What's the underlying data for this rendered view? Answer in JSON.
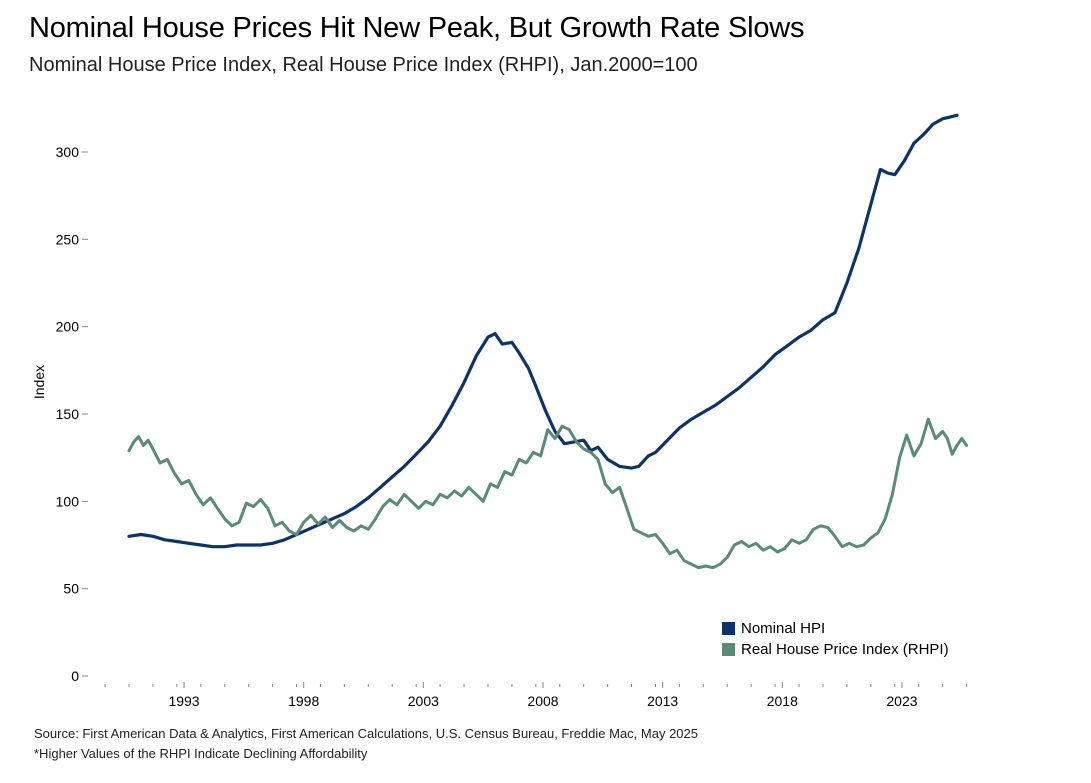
{
  "title": "Nominal House Prices Hit New Peak, But Growth Rate Slows",
  "subtitle": "Nominal House Price Index, Real House Price Index (RHPI), Jan.2000=100",
  "source": "Source: First American Data & Analytics, First American Calculations, U.S. Census Bureau, Freddie Mac, May 2025",
  "footnote": "*Higher Values of the RHPI Indicate Declining Affordability",
  "colors": {
    "nominal": "#0c3468",
    "real": "#5a8a78",
    "axis": "#888888"
  },
  "chart_data": {
    "type": "line",
    "ylabel": "Index",
    "xlabel": "",
    "ylim": [
      0,
      325
    ],
    "xlim": [
      1990.0,
      2025.8
    ],
    "yticks": [
      0,
      50,
      100,
      150,
      200,
      250,
      300
    ],
    "xticks": [
      1993,
      1998,
      2003,
      2008,
      2013,
      2018,
      2023
    ],
    "legend": [
      "Nominal HPI",
      "Real House Price Index (RHPI)"
    ],
    "series": [
      {
        "name": "Nominal HPI",
        "points": [
          [
            1991.0,
            80
          ],
          [
            1991.5,
            81
          ],
          [
            1992.0,
            80
          ],
          [
            1992.5,
            78
          ],
          [
            1993.0,
            77
          ],
          [
            1993.5,
            76
          ],
          [
            1994.0,
            75
          ],
          [
            1994.5,
            74
          ],
          [
            1995.0,
            74
          ],
          [
            1995.5,
            75
          ],
          [
            1996.0,
            75
          ],
          [
            1996.5,
            75
          ],
          [
            1997.0,
            76
          ],
          [
            1997.5,
            78
          ],
          [
            1998.0,
            81
          ],
          [
            1998.5,
            84
          ],
          [
            1999.0,
            87
          ],
          [
            1999.5,
            90
          ],
          [
            2000.0,
            93
          ],
          [
            2000.5,
            97
          ],
          [
            2001.0,
            102
          ],
          [
            2001.5,
            108
          ],
          [
            2002.0,
            114
          ],
          [
            2002.5,
            120
          ],
          [
            2003.0,
            127
          ],
          [
            2003.5,
            134
          ],
          [
            2004.0,
            143
          ],
          [
            2004.5,
            155
          ],
          [
            2005.0,
            168
          ],
          [
            2005.5,
            183
          ],
          [
            2006.0,
            194
          ],
          [
            2006.3,
            196
          ],
          [
            2006.6,
            190
          ],
          [
            2007.0,
            191
          ],
          [
            2007.3,
            185
          ],
          [
            2007.7,
            176
          ],
          [
            2008.0,
            166
          ],
          [
            2008.4,
            152
          ],
          [
            2008.8,
            140
          ],
          [
            2009.2,
            133
          ],
          [
            2009.6,
            134
          ],
          [
            2010.0,
            135
          ],
          [
            2010.3,
            129
          ],
          [
            2010.6,
            131
          ],
          [
            2011.0,
            124
          ],
          [
            2011.5,
            120
          ],
          [
            2012.0,
            119
          ],
          [
            2012.3,
            120
          ],
          [
            2012.7,
            126
          ],
          [
            2013.0,
            128
          ],
          [
            2013.5,
            135
          ],
          [
            2014.0,
            142
          ],
          [
            2014.5,
            147
          ],
          [
            2015.0,
            151
          ],
          [
            2015.5,
            155
          ],
          [
            2016.0,
            160
          ],
          [
            2016.5,
            165
          ],
          [
            2017.0,
            171
          ],
          [
            2017.5,
            177
          ],
          [
            2018.0,
            184
          ],
          [
            2018.5,
            189
          ],
          [
            2019.0,
            194
          ],
          [
            2019.5,
            198
          ],
          [
            2020.0,
            204
          ],
          [
            2020.5,
            208
          ],
          [
            2021.0,
            225
          ],
          [
            2021.5,
            245
          ],
          [
            2022.0,
            270
          ],
          [
            2022.4,
            290
          ],
          [
            2022.7,
            288
          ],
          [
            2023.0,
            287
          ],
          [
            2023.4,
            295
          ],
          [
            2023.8,
            305
          ],
          [
            2024.2,
            310
          ],
          [
            2024.6,
            316
          ],
          [
            2025.0,
            319
          ],
          [
            2025.3,
            320
          ],
          [
            2025.6,
            321
          ]
        ]
      },
      {
        "name": "Real House Price Index (RHPI)",
        "points": [
          [
            1991.0,
            129
          ],
          [
            1991.2,
            134
          ],
          [
            1991.4,
            137
          ],
          [
            1991.6,
            132
          ],
          [
            1991.8,
            135
          ],
          [
            1992.0,
            130
          ],
          [
            1992.3,
            122
          ],
          [
            1992.6,
            124
          ],
          [
            1992.9,
            116
          ],
          [
            1993.2,
            110
          ],
          [
            1993.5,
            112
          ],
          [
            1993.8,
            104
          ],
          [
            1994.1,
            98
          ],
          [
            1994.4,
            102
          ],
          [
            1994.7,
            96
          ],
          [
            1995.0,
            90
          ],
          [
            1995.3,
            86
          ],
          [
            1995.6,
            88
          ],
          [
            1995.9,
            99
          ],
          [
            1996.2,
            97
          ],
          [
            1996.5,
            101
          ],
          [
            1996.8,
            96
          ],
          [
            1997.1,
            86
          ],
          [
            1997.4,
            88
          ],
          [
            1997.7,
            83
          ],
          [
            1998.0,
            81
          ],
          [
            1998.3,
            88
          ],
          [
            1998.6,
            92
          ],
          [
            1998.9,
            87
          ],
          [
            1999.2,
            91
          ],
          [
            1999.5,
            85
          ],
          [
            1999.8,
            89
          ],
          [
            2000.1,
            85
          ],
          [
            2000.4,
            83
          ],
          [
            2000.7,
            86
          ],
          [
            2001.0,
            84
          ],
          [
            2001.3,
            90
          ],
          [
            2001.6,
            97
          ],
          [
            2001.9,
            101
          ],
          [
            2002.2,
            98
          ],
          [
            2002.5,
            104
          ],
          [
            2002.8,
            100
          ],
          [
            2003.1,
            96
          ],
          [
            2003.4,
            100
          ],
          [
            2003.7,
            98
          ],
          [
            2004.0,
            104
          ],
          [
            2004.3,
            102
          ],
          [
            2004.6,
            106
          ],
          [
            2004.9,
            103
          ],
          [
            2005.2,
            108
          ],
          [
            2005.5,
            104
          ],
          [
            2005.8,
            100
          ],
          [
            2006.1,
            110
          ],
          [
            2006.4,
            108
          ],
          [
            2006.7,
            117
          ],
          [
            2007.0,
            115
          ],
          [
            2007.3,
            124
          ],
          [
            2007.6,
            122
          ],
          [
            2007.9,
            128
          ],
          [
            2008.2,
            126
          ],
          [
            2008.5,
            141
          ],
          [
            2008.8,
            136
          ],
          [
            2009.1,
            143
          ],
          [
            2009.4,
            141
          ],
          [
            2009.7,
            134
          ],
          [
            2010.0,
            130
          ],
          [
            2010.3,
            128
          ],
          [
            2010.6,
            124
          ],
          [
            2010.9,
            110
          ],
          [
            2011.2,
            105
          ],
          [
            2011.5,
            108
          ],
          [
            2011.8,
            96
          ],
          [
            2012.1,
            84
          ],
          [
            2012.4,
            82
          ],
          [
            2012.7,
            80
          ],
          [
            2013.0,
            81
          ],
          [
            2013.3,
            76
          ],
          [
            2013.6,
            70
          ],
          [
            2013.9,
            72
          ],
          [
            2014.2,
            66
          ],
          [
            2014.5,
            64
          ],
          [
            2014.8,
            62
          ],
          [
            2015.1,
            63
          ],
          [
            2015.4,
            62
          ],
          [
            2015.7,
            64
          ],
          [
            2016.0,
            68
          ],
          [
            2016.3,
            75
          ],
          [
            2016.6,
            77
          ],
          [
            2016.9,
            74
          ],
          [
            2017.2,
            76
          ],
          [
            2017.5,
            72
          ],
          [
            2017.8,
            74
          ],
          [
            2018.1,
            71
          ],
          [
            2018.4,
            73
          ],
          [
            2018.7,
            78
          ],
          [
            2019.0,
            76
          ],
          [
            2019.3,
            78
          ],
          [
            2019.6,
            84
          ],
          [
            2019.9,
            86
          ],
          [
            2020.2,
            85
          ],
          [
            2020.5,
            80
          ],
          [
            2020.8,
            74
          ],
          [
            2021.1,
            76
          ],
          [
            2021.4,
            74
          ],
          [
            2021.7,
            75
          ],
          [
            2022.0,
            79
          ],
          [
            2022.3,
            82
          ],
          [
            2022.6,
            90
          ],
          [
            2022.9,
            104
          ],
          [
            2023.2,
            125
          ],
          [
            2023.5,
            138
          ],
          [
            2023.8,
            126
          ],
          [
            2024.1,
            133
          ],
          [
            2024.4,
            147
          ],
          [
            2024.7,
            136
          ],
          [
            2025.0,
            140
          ],
          [
            2025.2,
            136
          ],
          [
            2025.4,
            127
          ],
          [
            2025.6,
            132
          ],
          [
            2025.8,
            136
          ],
          [
            2026.0,
            132
          ]
        ]
      }
    ]
  }
}
